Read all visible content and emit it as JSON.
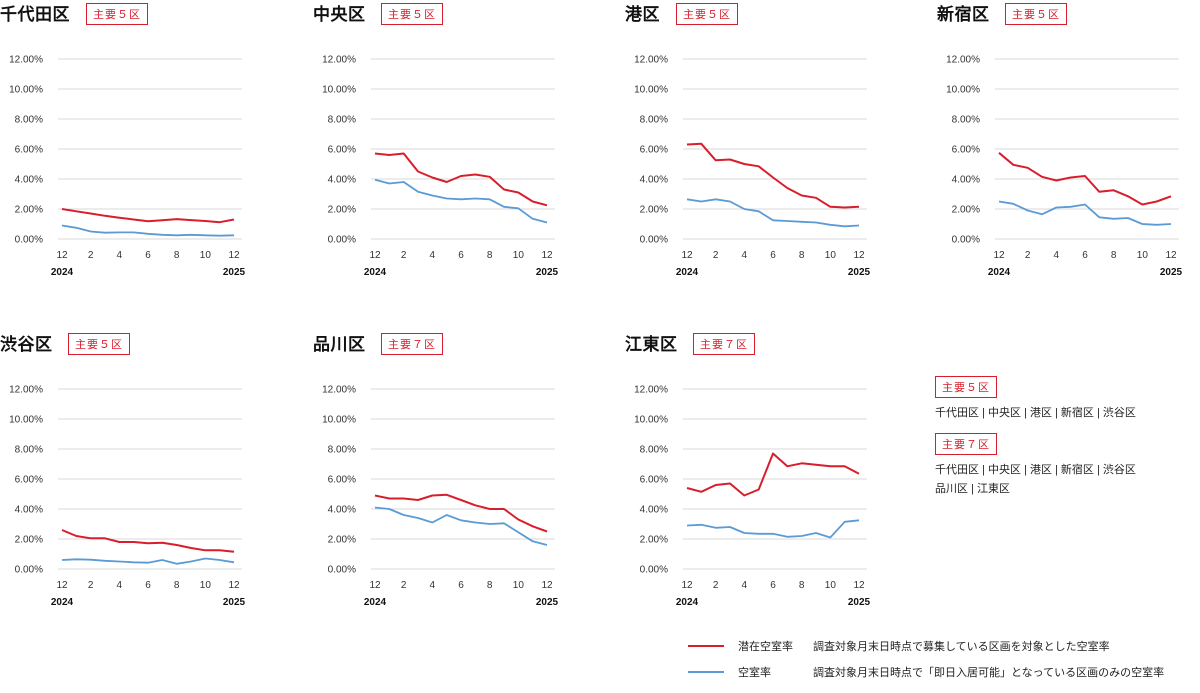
{
  "colors": {
    "potential": "#d81e2c",
    "vacancy": "#5b9bd5",
    "grid": "#d9d9d9"
  },
  "axis": {
    "y_ticks": [
      "0.00%",
      "2.00%",
      "4.00%",
      "6.00%",
      "8.00%",
      "10.00%",
      "12.00%"
    ],
    "x_ticks": [
      "12",
      "2",
      "4",
      "6",
      "8",
      "10",
      "12"
    ],
    "year_start": "2024",
    "year_end": "2025"
  },
  "wards": [
    {
      "name": "千代田区",
      "group": "主要５区"
    },
    {
      "name": "中央区",
      "group": "主要５区"
    },
    {
      "name": "港区",
      "group": "主要５区"
    },
    {
      "name": "新宿区",
      "group": "主要５区"
    },
    {
      "name": "渋谷区",
      "group": "主要５区"
    },
    {
      "name": "品川区",
      "group": "主要７区"
    },
    {
      "name": "江東区",
      "group": "主要７区"
    }
  ],
  "groups": [
    {
      "label": "主要５区",
      "members": [
        "千代田区 | 中央区 | 港区 | 新宿区 | 渋谷区"
      ]
    },
    {
      "label": "主要７区",
      "members": [
        "千代田区 | 中央区 | 港区 | 新宿区 | 渋谷区",
        "品川区 | 江東区"
      ]
    }
  ],
  "legend": [
    {
      "name": "潜在空室率",
      "description": "調査対象月末日時点で募集している区画を対象とした空室率",
      "color_key": "potential"
    },
    {
      "name": "空室率",
      "description": "調査対象月末日時点で「即日入居可能」となっている区画のみの空室率",
      "color_key": "vacancy"
    }
  ],
  "chart_data": [
    {
      "type": "line",
      "title": "千代田区",
      "ylim": [
        0,
        12
      ],
      "x": [
        "2024-12",
        "2025-01",
        "2025-02",
        "2025-03",
        "2025-04",
        "2025-05",
        "2025-06",
        "2025-07",
        "2025-08",
        "2025-09",
        "2025-10",
        "2025-11",
        "2025-12"
      ],
      "series": [
        {
          "name": "潜在空室率",
          "values": [
            2.0,
            1.85,
            1.7,
            1.55,
            1.42,
            1.3,
            1.18,
            1.25,
            1.33,
            1.26,
            1.2,
            1.12,
            1.3
          ]
        },
        {
          "name": "空室率",
          "values": [
            0.9,
            0.75,
            0.5,
            0.42,
            0.44,
            0.44,
            0.35,
            0.28,
            0.25,
            0.28,
            0.25,
            0.22,
            0.25
          ]
        }
      ]
    },
    {
      "type": "line",
      "title": "中央区",
      "ylim": [
        0,
        12
      ],
      "x": [
        "2024-12",
        "2025-01",
        "2025-02",
        "2025-03",
        "2025-04",
        "2025-05",
        "2025-06",
        "2025-07",
        "2025-08",
        "2025-09",
        "2025-10",
        "2025-11",
        "2025-12"
      ],
      "series": [
        {
          "name": "潜在空室率",
          "values": [
            5.7,
            5.6,
            5.7,
            4.5,
            4.1,
            3.8,
            4.2,
            4.3,
            4.15,
            3.3,
            3.1,
            2.5,
            2.25
          ]
        },
        {
          "name": "空室率",
          "values": [
            3.95,
            3.7,
            3.8,
            3.15,
            2.9,
            2.7,
            2.65,
            2.7,
            2.65,
            2.15,
            2.05,
            1.35,
            1.1
          ]
        }
      ]
    },
    {
      "type": "line",
      "title": "港区",
      "ylim": [
        0,
        12
      ],
      "x": [
        "2024-12",
        "2025-01",
        "2025-02",
        "2025-03",
        "2025-04",
        "2025-05",
        "2025-06",
        "2025-07",
        "2025-08",
        "2025-09",
        "2025-10",
        "2025-11",
        "2025-12"
      ],
      "series": [
        {
          "name": "潜在空室率",
          "values": [
            6.3,
            6.35,
            5.25,
            5.3,
            5.0,
            4.85,
            4.1,
            3.4,
            2.9,
            2.75,
            2.15,
            2.1,
            2.15
          ]
        },
        {
          "name": "空室率",
          "values": [
            2.65,
            2.5,
            2.65,
            2.5,
            2.0,
            1.85,
            1.25,
            1.2,
            1.15,
            1.1,
            0.95,
            0.85,
            0.9
          ]
        }
      ]
    },
    {
      "type": "line",
      "title": "新宿区",
      "ylim": [
        0,
        12
      ],
      "x": [
        "2024-12",
        "2025-01",
        "2025-02",
        "2025-03",
        "2025-04",
        "2025-05",
        "2025-06",
        "2025-07",
        "2025-08",
        "2025-09",
        "2025-10",
        "2025-11",
        "2025-12"
      ],
      "series": [
        {
          "name": "潜在空室率",
          "values": [
            5.75,
            4.95,
            4.75,
            4.15,
            3.9,
            4.1,
            4.2,
            3.15,
            3.25,
            2.85,
            2.3,
            2.5,
            2.85
          ]
        },
        {
          "name": "空室率",
          "values": [
            2.5,
            2.35,
            1.9,
            1.65,
            2.1,
            2.15,
            2.3,
            1.45,
            1.35,
            1.4,
            1.0,
            0.95,
            1.0
          ]
        }
      ]
    },
    {
      "type": "line",
      "title": "渋谷区",
      "ylim": [
        0,
        12
      ],
      "x": [
        "2024-12",
        "2025-01",
        "2025-02",
        "2025-03",
        "2025-04",
        "2025-05",
        "2025-06",
        "2025-07",
        "2025-08",
        "2025-09",
        "2025-10",
        "2025-11",
        "2025-12"
      ],
      "series": [
        {
          "name": "潜在空室率",
          "values": [
            2.6,
            2.2,
            2.05,
            2.05,
            1.8,
            1.8,
            1.72,
            1.75,
            1.6,
            1.4,
            1.25,
            1.25,
            1.15
          ]
        },
        {
          "name": "空室率",
          "values": [
            0.6,
            0.65,
            0.62,
            0.55,
            0.5,
            0.45,
            0.42,
            0.6,
            0.35,
            0.5,
            0.7,
            0.6,
            0.45
          ]
        }
      ]
    },
    {
      "type": "line",
      "title": "品川区",
      "ylim": [
        0,
        12
      ],
      "x": [
        "2024-12",
        "2025-01",
        "2025-02",
        "2025-03",
        "2025-04",
        "2025-05",
        "2025-06",
        "2025-07",
        "2025-08",
        "2025-09",
        "2025-10",
        "2025-11",
        "2025-12"
      ],
      "series": [
        {
          "name": "潜在空室率",
          "values": [
            4.9,
            4.7,
            4.7,
            4.6,
            4.9,
            4.95,
            4.6,
            4.25,
            4.0,
            4.0,
            3.3,
            2.85,
            2.5
          ]
        },
        {
          "name": "空室率",
          "values": [
            4.1,
            4.0,
            3.6,
            3.4,
            3.1,
            3.6,
            3.25,
            3.1,
            3.0,
            3.05,
            2.45,
            1.85,
            1.6
          ]
        }
      ]
    },
    {
      "type": "line",
      "title": "江東区",
      "ylim": [
        0,
        12
      ],
      "x": [
        "2024-12",
        "2025-01",
        "2025-02",
        "2025-03",
        "2025-04",
        "2025-05",
        "2025-06",
        "2025-07",
        "2025-08",
        "2025-09",
        "2025-10",
        "2025-11",
        "2025-12"
      ],
      "series": [
        {
          "name": "潜在空室率",
          "values": [
            5.4,
            5.15,
            5.6,
            5.7,
            4.9,
            5.3,
            7.7,
            6.85,
            7.05,
            6.95,
            6.85,
            6.85,
            6.35
          ]
        },
        {
          "name": "空室率",
          "values": [
            2.9,
            2.95,
            2.75,
            2.8,
            2.4,
            2.35,
            2.35,
            2.15,
            2.2,
            2.4,
            2.1,
            3.15,
            3.25
          ]
        }
      ]
    }
  ]
}
